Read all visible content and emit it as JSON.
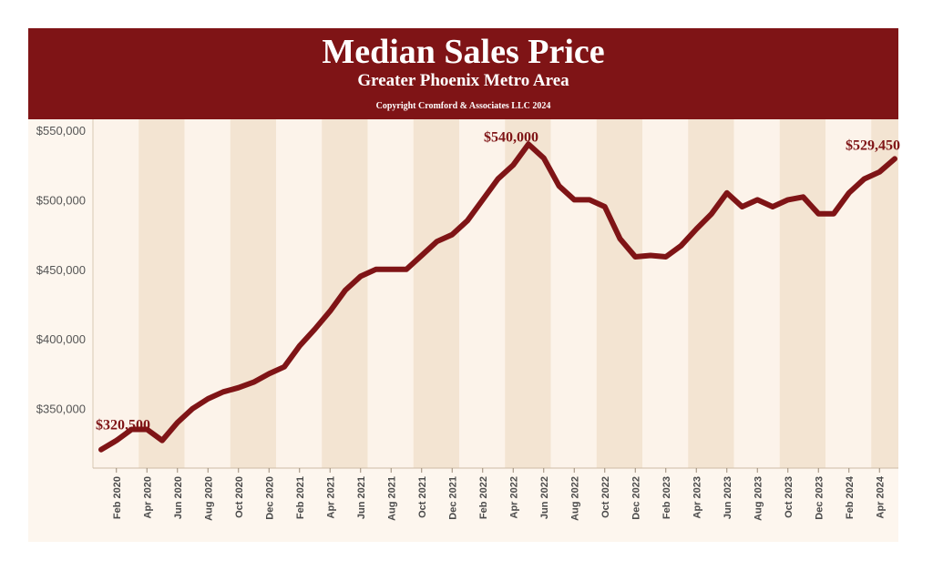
{
  "header": {
    "title": "Median Sales Price",
    "subtitle": "Greater Phoenix Metro Area",
    "copyright": "Copyright Cromford & Associates LLC 2024"
  },
  "colors": {
    "banner": "#7f1416",
    "line": "#7f1416",
    "band_light": "#fcf3ea",
    "band_dark": "#f3e4d2"
  },
  "chart_data": {
    "type": "line",
    "ylim": [
      300000,
      550000
    ],
    "yticks": [
      350000,
      400000,
      450000,
      500000,
      550000
    ],
    "ytick_labels": [
      "$350,000",
      "$400,000",
      "$450,000",
      "$500,000",
      "$550,000"
    ],
    "x": [
      "Jan 2020",
      "Feb 2020",
      "Mar 2020",
      "Apr 2020",
      "May 2020",
      "Jun 2020",
      "Jul 2020",
      "Aug 2020",
      "Sep 2020",
      "Oct 2020",
      "Nov 2020",
      "Dec 2020",
      "Jan 2021",
      "Feb 2021",
      "Mar 2021",
      "Apr 2021",
      "May 2021",
      "Jun 2021",
      "Jul 2021",
      "Aug 2021",
      "Sep 2021",
      "Oct 2021",
      "Nov 2021",
      "Dec 2021",
      "Jan 2022",
      "Feb 2022",
      "Mar 2022",
      "Apr 2022",
      "May 2022",
      "Jun 2022",
      "Jul 2022",
      "Aug 2022",
      "Sep 2022",
      "Oct 2022",
      "Nov 2022",
      "Dec 2022",
      "Jan 2023",
      "Feb 2023",
      "Mar 2023",
      "Apr 2023",
      "May 2023",
      "Jun 2023",
      "Jul 2023",
      "Aug 2023",
      "Sep 2023",
      "Oct 2023",
      "Nov 2023",
      "Dec 2023",
      "Jan 2024",
      "Feb 2024",
      "Mar 2024",
      "Apr 2024",
      "May 2024"
    ],
    "values": [
      320500,
      327000,
      335000,
      335000,
      327000,
      340000,
      350000,
      357000,
      362000,
      365000,
      369000,
      375000,
      380000,
      395000,
      407000,
      420000,
      435000,
      445000,
      450000,
      450000,
      450000,
      460000,
      470000,
      475000,
      485000,
      500000,
      515000,
      525000,
      540000,
      530000,
      510000,
      500000,
      500000,
      495000,
      472000,
      459000,
      460000,
      459000,
      467000,
      479000,
      490000,
      505000,
      495000,
      500000,
      495000,
      500000,
      502000,
      490000,
      490000,
      505000,
      515000,
      520000,
      529450
    ],
    "xtick_labels": [
      "Feb 2020",
      "Apr 2020",
      "Jun 2020",
      "Aug 2020",
      "Oct 2020",
      "Dec 2020",
      "Feb 2021",
      "Apr 2021",
      "Jun 2021",
      "Aug 2021",
      "Oct 2021",
      "Dec 2021",
      "Feb 2022",
      "Apr 2022",
      "Jun 2022",
      "Aug 2022",
      "Oct 2022",
      "Dec 2022",
      "Feb 2023",
      "Apr 2023",
      "Jun 2023",
      "Aug 2023",
      "Oct 2023",
      "Dec 2023",
      "Feb 2024",
      "Apr 2024"
    ],
    "annotations": [
      {
        "label": "$320,500",
        "index": 0
      },
      {
        "label": "$540,000",
        "index": 28
      },
      {
        "label": "$529,450",
        "index": 52
      }
    ],
    "grid": false,
    "legend": "none"
  }
}
